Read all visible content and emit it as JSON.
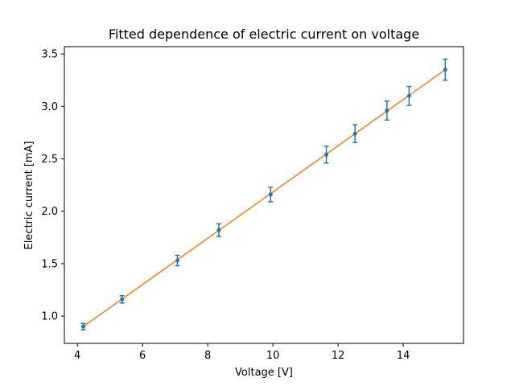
{
  "chart_data": {
    "type": "scatter",
    "title": "Fitted dependence of electric current on voltage",
    "xlabel": "Voltage [V]",
    "ylabel": "Electric current [mA]",
    "xlim": [
      3.6,
      15.85
    ],
    "ylim": [
      0.74,
      3.57
    ],
    "xticks": [
      4,
      6,
      8,
      10,
      12,
      14
    ],
    "yticks": [
      1.0,
      1.5,
      2.0,
      2.5,
      3.0,
      3.5
    ],
    "xtick_labels": [
      "4",
      "6",
      "8",
      "10",
      "12",
      "14"
    ],
    "ytick_labels": [
      "1.0",
      "1.5",
      "2.0",
      "2.5",
      "3.0",
      "3.5"
    ],
    "grid": false,
    "series": [
      {
        "kind": "errorbar",
        "color": "#1f77b4",
        "points": [
          {
            "x": 4.18,
            "y": 0.9,
            "err": 0.03
          },
          {
            "x": 5.37,
            "y": 1.16,
            "err": 0.035
          },
          {
            "x": 7.07,
            "y": 1.53,
            "err": 0.05
          },
          {
            "x": 8.34,
            "y": 1.82,
            "err": 0.06
          },
          {
            "x": 9.93,
            "y": 2.16,
            "err": 0.07
          },
          {
            "x": 11.64,
            "y": 2.54,
            "err": 0.08
          },
          {
            "x": 12.52,
            "y": 2.74,
            "err": 0.085
          },
          {
            "x": 13.5,
            "y": 2.96,
            "err": 0.09
          },
          {
            "x": 14.18,
            "y": 3.1,
            "err": 0.09
          },
          {
            "x": 15.29,
            "y": 3.35,
            "err": 0.1
          }
        ]
      },
      {
        "kind": "line",
        "color": "#ff7f0e",
        "x": [
          4.18,
          15.29
        ],
        "y": [
          0.9,
          3.35
        ]
      }
    ]
  }
}
